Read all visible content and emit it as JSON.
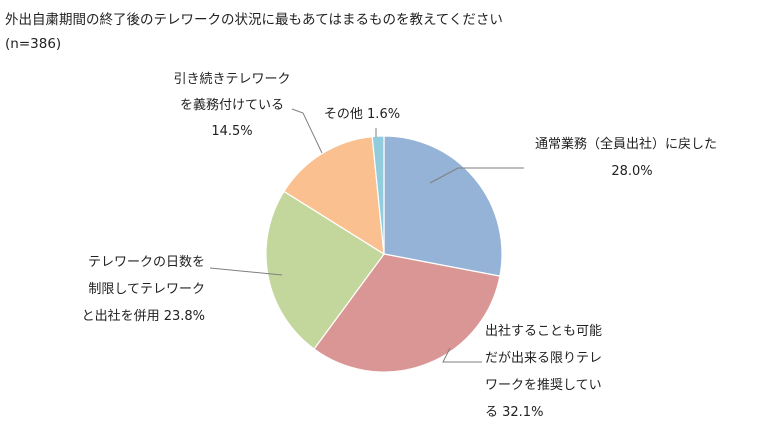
{
  "title": "外出自粛期間の終了後のテレワークの状況に最もあてはまるものを教えてください",
  "subtitle": "(n=386)",
  "chart_data": {
    "type": "pie",
    "start_angle": "12 o'clock, clockwise",
    "slices": [
      {
        "label_lines": [
          "通常業務（全員出社）に戻した",
          "28.0%"
        ],
        "value": 28.0,
        "color": "#95b3d7"
      },
      {
        "label_lines": [
          "出社することも可能",
          "だが出来る限りテレ",
          "ワークを推奨してい",
          "る 32.1%"
        ],
        "value": 32.1,
        "color": "#d99694"
      },
      {
        "label_lines": [
          "テレワークの日数を",
          "制限してテレワーク",
          "と出社を併用 23.8%"
        ],
        "value": 23.8,
        "color": "#c3d69b"
      },
      {
        "label_lines": [
          "引き続きテレワーク",
          "を義務付けている",
          "14.5%"
        ],
        "value": 14.5,
        "color": "#fac090"
      },
      {
        "label_lines": [
          "その他 1.6%"
        ],
        "value": 1.6,
        "color": "#93cddd"
      }
    ]
  }
}
